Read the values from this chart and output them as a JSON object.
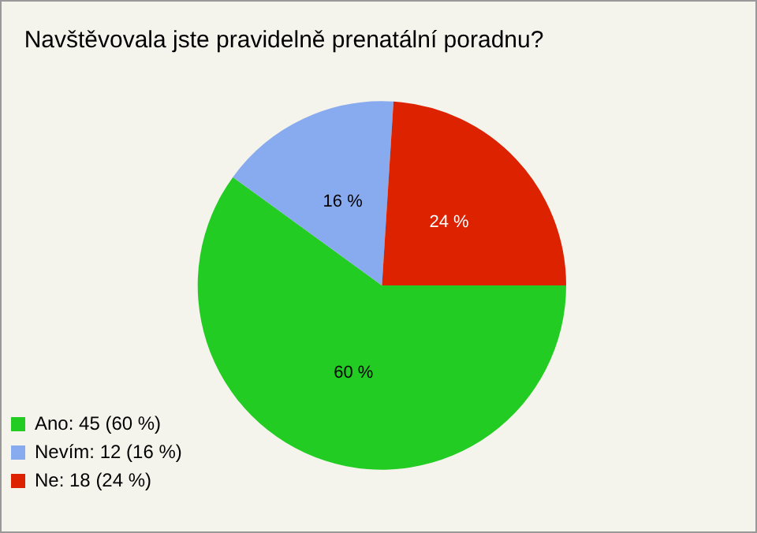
{
  "chart_data": {
    "type": "pie",
    "title": "Navštěvovala jste pravidelně prenatální poradnu?",
    "categories": [
      "Ano: 45 (60 %)",
      "Nevím: 12 (16 %)",
      "Ne: 18 (24 %)"
    ],
    "values": [
      60,
      16,
      24
    ],
    "value_labels": [
      "60 %",
      "16 %",
      "24 %"
    ],
    "colors": [
      "#22cc22",
      "#88aaee",
      "#dd2200"
    ],
    "legend": "bottom left"
  }
}
